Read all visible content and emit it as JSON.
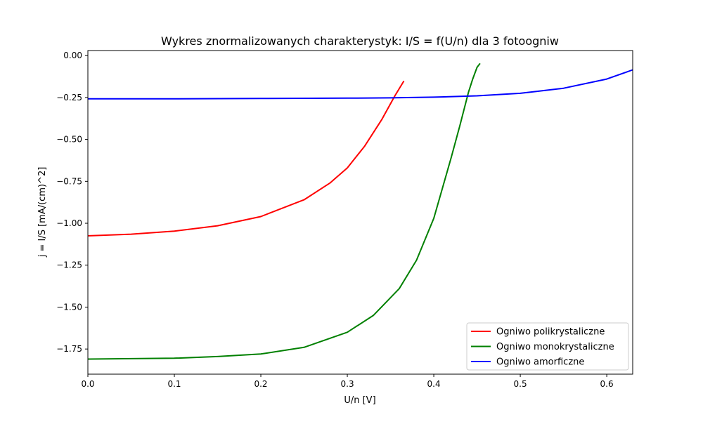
{
  "chart_data": {
    "type": "line",
    "title": "Wykres znormalizowanych charakterystyk: I/S = f(U/n) dla 3 fotoogniw",
    "xlabel": "U/n [V]",
    "ylabel": "j = I/S [mA/(cm)^2]",
    "xlim": [
      0.0,
      0.63
    ],
    "ylim": [
      -1.9,
      0.03
    ],
    "xticks": [
      0.0,
      0.1,
      0.2,
      0.3,
      0.4,
      0.5,
      0.6
    ],
    "xtick_labels": [
      "0.0",
      "0.1",
      "0.2",
      "0.3",
      "0.4",
      "0.5",
      "0.6"
    ],
    "yticks": [
      0.0,
      -0.25,
      -0.5,
      -0.75,
      -1.0,
      -1.25,
      -1.5,
      -1.75
    ],
    "ytick_labels": [
      "0.00",
      "−0.25",
      "−0.50",
      "−0.75",
      "−1.00",
      "−1.25",
      "−1.50",
      "−1.75"
    ],
    "grid": false,
    "legend_position": "lower-right",
    "series": [
      {
        "name": "Ogniwo polikrystaliczne",
        "color": "#ff0000",
        "x": [
          0.0,
          0.05,
          0.1,
          0.15,
          0.2,
          0.25,
          0.28,
          0.3,
          0.32,
          0.34,
          0.355,
          0.365
        ],
        "y": [
          -1.075,
          -1.065,
          -1.047,
          -1.015,
          -0.96,
          -0.86,
          -0.76,
          -0.67,
          -0.54,
          -0.38,
          -0.24,
          -0.155
        ]
      },
      {
        "name": "Ogniwo monokrystaliczne",
        "color": "#008000",
        "x": [
          0.0,
          0.1,
          0.15,
          0.2,
          0.25,
          0.3,
          0.33,
          0.36,
          0.38,
          0.4,
          0.42,
          0.43,
          0.44,
          0.445,
          0.45,
          0.453
        ],
        "y": [
          -1.81,
          -1.805,
          -1.795,
          -1.78,
          -1.74,
          -1.65,
          -1.55,
          -1.39,
          -1.22,
          -0.97,
          -0.61,
          -0.42,
          -0.22,
          -0.14,
          -0.07,
          -0.05
        ]
      },
      {
        "name": "Ogniwo amorficzne",
        "color": "#0000ff",
        "x": [
          0.0,
          0.1,
          0.2,
          0.3,
          0.35,
          0.4,
          0.45,
          0.5,
          0.55,
          0.6,
          0.63
        ],
        "y": [
          -0.258,
          -0.258,
          -0.256,
          -0.254,
          -0.252,
          -0.248,
          -0.24,
          -0.225,
          -0.195,
          -0.14,
          -0.085
        ]
      }
    ]
  }
}
